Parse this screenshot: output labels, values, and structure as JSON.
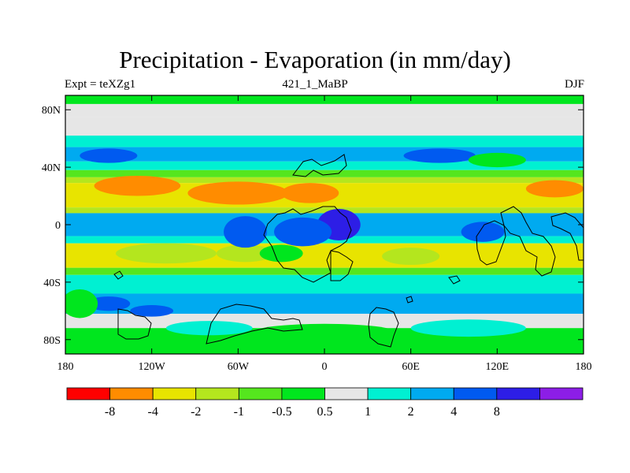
{
  "figure": {
    "title": "Precipitation - Evaporation (in mm/day)",
    "left_label": "Expt = teXZg1",
    "center_label": "421_1_MaBP",
    "right_label": "DJF"
  },
  "chart_data": {
    "type": "heatmap",
    "title": "Precipitation - Evaporation (in mm/day)",
    "subtitle_left": "Expt = teXZg1",
    "subtitle_center": "421_1_MaBP",
    "subtitle_right": "DJF",
    "x_ticks": [
      "180",
      "120W",
      "60W",
      "0",
      "60E",
      "120E",
      "180"
    ],
    "x_tick_values": [
      -180,
      -120,
      -60,
      0,
      60,
      120,
      180
    ],
    "y_ticks": [
      "80N",
      "40N",
      "0",
      "40S",
      "80S"
    ],
    "y_tick_values": [
      80,
      40,
      0,
      -40,
      -80
    ],
    "xlim": [
      -180,
      180
    ],
    "ylim": [
      -90,
      90
    ],
    "colorbar": {
      "labels": [
        "-8",
        "-4",
        "-2",
        "-1",
        "-0.5",
        "0.5",
        "1",
        "2",
        "4",
        "8"
      ],
      "levels": [
        -8,
        -4,
        -2,
        -1,
        -0.5,
        0.5,
        1,
        2,
        4,
        8
      ],
      "colors": [
        "#ff0000",
        "#ff8c00",
        "#e8e400",
        "#b4e61e",
        "#55e61e",
        "#00e61e",
        "#e6e6e6",
        "#00f0d2",
        "#00aaf0",
        "#005af0",
        "#2d1ee6",
        "#8c1ee6"
      ]
    },
    "zonal_bands": [
      {
        "lat_top": 90,
        "lat_bottom": 84,
        "value": 0
      },
      {
        "lat_top": 84,
        "lat_bottom": 75,
        "value": 0.7
      },
      {
        "lat_top": 75,
        "lat_bottom": 62,
        "value": 0.7
      },
      {
        "lat_top": 62,
        "lat_bottom": 54,
        "value": 1.5
      },
      {
        "lat_top": 54,
        "lat_bottom": 44,
        "value": 3
      },
      {
        "lat_top": 44,
        "lat_bottom": 38,
        "value": 1.5
      },
      {
        "lat_top": 38,
        "lat_bottom": 33,
        "value": -0.7
      },
      {
        "lat_top": 33,
        "lat_bottom": 29,
        "value": -1.5
      },
      {
        "lat_top": 29,
        "lat_bottom": 12,
        "value": -3
      },
      {
        "lat_top": 12,
        "lat_bottom": 8,
        "value": -1.5
      },
      {
        "lat_top": 8,
        "lat_bottom": -8,
        "value": 3
      },
      {
        "lat_top": -8,
        "lat_bottom": -13,
        "value": 1.5
      },
      {
        "lat_top": -13,
        "lat_bottom": -30,
        "value": -3
      },
      {
        "lat_top": -30,
        "lat_bottom": -35,
        "value": -0.7
      },
      {
        "lat_top": -35,
        "lat_bottom": -48,
        "value": 1.5
      },
      {
        "lat_top": -48,
        "lat_bottom": -62,
        "value": 3
      },
      {
        "lat_top": -62,
        "lat_bottom": -72,
        "value": 0.7
      },
      {
        "lat_top": -72,
        "lat_bottom": -90,
        "value": 0
      }
    ],
    "features": [
      {
        "lon": -130,
        "lat": 27,
        "w": 60,
        "h": 14,
        "value": -6
      },
      {
        "lon": -60,
        "lat": 22,
        "w": 70,
        "h": 16,
        "value": -6
      },
      {
        "lon": -10,
        "lat": 22,
        "w": 40,
        "h": 14,
        "value": -6
      },
      {
        "lon": 160,
        "lat": 25,
        "w": 40,
        "h": 12,
        "value": -6
      },
      {
        "lon": -110,
        "lat": -20,
        "w": 70,
        "h": 14,
        "value": -1.5
      },
      {
        "lon": -55,
        "lat": -20,
        "w": 40,
        "h": 12,
        "value": -1.5
      },
      {
        "lon": 60,
        "lat": -22,
        "w": 40,
        "h": 12,
        "value": -1.5
      },
      {
        "lon": -55,
        "lat": -5,
        "w": 30,
        "h": 22,
        "value": 6
      },
      {
        "lon": 10,
        "lat": 0,
        "w": 30,
        "h": 22,
        "value": 9
      },
      {
        "lon": -15,
        "lat": -5,
        "w": 40,
        "h": 20,
        "value": 6
      },
      {
        "lon": 110,
        "lat": -5,
        "w": 30,
        "h": 14,
        "value": 6
      },
      {
        "lon": -150,
        "lat": 48,
        "w": 40,
        "h": 10,
        "value": 6
      },
      {
        "lon": 80,
        "lat": 48,
        "w": 50,
        "h": 10,
        "value": 6
      },
      {
        "lon": -150,
        "lat": -55,
        "w": 30,
        "h": 10,
        "value": 6
      },
      {
        "lon": -120,
        "lat": -60,
        "w": 30,
        "h": 8,
        "value": 6
      },
      {
        "lon": -170,
        "lat": -55,
        "w": 25,
        "h": 20,
        "value": 0
      },
      {
        "lon": -30,
        "lat": -20,
        "w": 30,
        "h": 12,
        "value": 0
      },
      {
        "lon": 120,
        "lat": 45,
        "w": 40,
        "h": 10,
        "value": 0
      },
      {
        "lon": 0,
        "lat": -75,
        "w": 100,
        "h": 12,
        "value": 0
      },
      {
        "lon": 100,
        "lat": -72,
        "w": 80,
        "h": 12,
        "value": 1.5
      },
      {
        "lon": -80,
        "lat": -72,
        "w": 60,
        "h": 10,
        "value": 1.5
      }
    ],
    "grid": false,
    "coastlines": true
  }
}
